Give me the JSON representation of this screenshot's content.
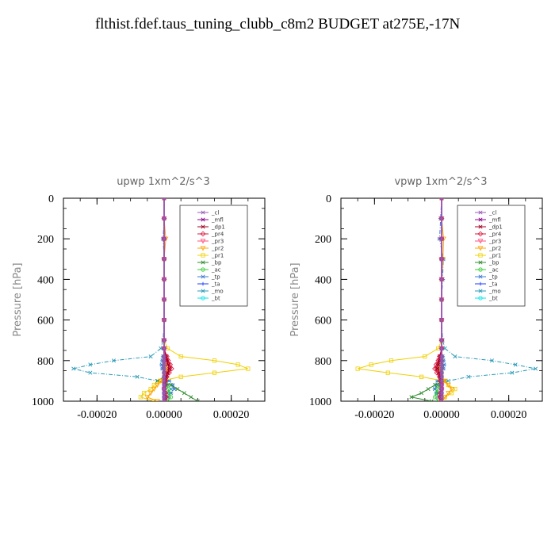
{
  "title": "flthist.fdef.taus_tuning_clubb_c8m2  BUDGET at275E,-17N",
  "legend_entries": [
    {
      "name": "_cl",
      "color": "#9b59b6"
    },
    {
      "name": "_mfl",
      "color": "#8b008b"
    },
    {
      "name": "_dp1",
      "color": "#a0001e"
    },
    {
      "name": "_pr4",
      "color": "#dc143c"
    },
    {
      "name": "_pr3",
      "color": "#ff4f7a"
    },
    {
      "name": "_pr2",
      "color": "#ffa500"
    },
    {
      "name": "_pr1",
      "color": "#f0d000"
    },
    {
      "name": "_bp",
      "color": "#2e8b2e"
    },
    {
      "name": "_ac",
      "color": "#32cd32"
    },
    {
      "name": "_tp",
      "color": "#3a7bd5"
    },
    {
      "name": "_ta",
      "color": "#1e3cff"
    },
    {
      "name": "_mo",
      "color": "#2a9bb8"
    },
    {
      "name": "_bt",
      "color": "#00e5ee"
    }
  ],
  "chart_data": [
    {
      "type": "line",
      "title": "upwp   1xm^2/s^3",
      "ylabel": "Pressure [hPa]",
      "xlabel": "",
      "xlim": [
        -0.0003,
        0.0003
      ],
      "ylim": [
        1000,
        0
      ],
      "xticks": [
        -0.0002,
        0.0,
        0.0002
      ],
      "xtick_labels": [
        "-0.00020",
        "0.00000",
        "0.00020"
      ],
      "yticks": [
        0,
        200,
        400,
        600,
        800,
        1000
      ],
      "ytick_labels": [
        "0",
        "200",
        "400",
        "600",
        "800",
        "1000"
      ],
      "legend_position": "top-right",
      "y": [
        0,
        100,
        200,
        300,
        400,
        500,
        600,
        700,
        740,
        780,
        800,
        820,
        840,
        860,
        880,
        900,
        920,
        940,
        960,
        980,
        1000
      ],
      "series": [
        {
          "name": "_cl",
          "values": [
            0,
            0,
            0,
            0,
            0,
            0,
            0,
            0,
            0,
            0,
            0,
            0,
            0,
            0,
            0,
            0,
            0,
            0,
            0,
            0,
            0
          ]
        },
        {
          "name": "_mfl",
          "values": [
            0,
            0,
            0,
            0,
            0,
            0,
            0,
            0,
            0,
            0,
            0,
            0,
            0,
            0,
            0,
            0,
            0,
            0,
            0,
            0,
            0
          ]
        },
        {
          "name": "_dp1",
          "values": [
            0,
            0,
            0,
            0,
            0,
            0,
            0,
            0,
            0,
            5e-06,
            8e-06,
            1.2e-05,
            1.5e-05,
            1e-05,
            6e-06,
            3e-06,
            1e-06,
            0,
            1e-06,
            2e-06,
            0
          ]
        },
        {
          "name": "_pr4",
          "values": [
            0,
            0,
            0,
            0,
            0,
            0,
            0,
            0,
            0,
            8e-06,
            1.2e-05,
            1.8e-05,
            2.2e-05,
            1.5e-05,
            8e-06,
            4e-06,
            2e-06,
            0,
            4e-06,
            6e-06,
            2e-06
          ]
        },
        {
          "name": "_pr3",
          "values": [
            0,
            0,
            0,
            0,
            0,
            0,
            0,
            0,
            0,
            6e-06,
            9e-06,
            1.4e-05,
            1.8e-05,
            1.2e-05,
            6e-06,
            3e-06,
            1e-06,
            0,
            3e-06,
            5e-06,
            1e-06
          ]
        },
        {
          "name": "_pr2",
          "values": [
            0,
            0,
            5e-06,
            0,
            0,
            0,
            0,
            0,
            0,
            3e-06,
            4e-06,
            6e-06,
            8e-06,
            5e-06,
            3e-06,
            -1e-05,
            -2e-05,
            -3e-05,
            -4e-05,
            -5e-05,
            -2e-05
          ]
        },
        {
          "name": "_pr1",
          "values": [
            0,
            0,
            0,
            0,
            0,
            0,
            0,
            0,
            1e-05,
            5e-05,
            0.00015,
            0.00022,
            0.00025,
            0.00015,
            5e-05,
            -1e-05,
            -3e-05,
            -4e-05,
            -6e-05,
            -7e-05,
            -3e-05
          ]
        },
        {
          "name": "_bp",
          "values": [
            0,
            0,
            0,
            0,
            0,
            0,
            0,
            0,
            0,
            0,
            0,
            0,
            0,
            0,
            0,
            -2e-05,
            2e-05,
            4e-05,
            6e-05,
            8e-05,
            0.0001
          ]
        },
        {
          "name": "_ac",
          "values": [
            0,
            0,
            0,
            0,
            0,
            0,
            0,
            0,
            0,
            0,
            0,
            0,
            0,
            0,
            0,
            5e-06,
            8e-06,
            1.2e-05,
            1.5e-05,
            2e-05,
            1e-05
          ]
        },
        {
          "name": "_tp",
          "values": [
            0,
            0,
            -3e-06,
            0,
            0,
            0,
            0,
            0,
            0,
            -3e-06,
            -5e-06,
            -7e-06,
            -5e-06,
            0,
            5e-06,
            1.5e-05,
            2.5e-05,
            3e-05,
            2e-05,
            1e-05,
            5e-06
          ]
        },
        {
          "name": "_ta",
          "values": [
            0,
            0,
            0,
            0,
            0,
            0,
            0,
            0,
            0,
            0,
            0,
            0,
            0,
            0,
            0,
            3e-06,
            5e-06,
            4e-06,
            2e-06,
            1e-06,
            0
          ]
        },
        {
          "name": "_mo",
          "values": [
            0,
            0,
            0,
            0,
            0,
            0,
            0,
            -3e-06,
            -1e-05,
            -4e-05,
            -0.00015,
            -0.00022,
            -0.00027,
            -0.00022,
            -8e-05,
            -2e-05,
            1e-05,
            2e-05,
            1e-05,
            0,
            0
          ]
        },
        {
          "name": "_bt",
          "values": [
            0,
            0,
            0,
            0,
            0,
            0,
            0,
            0,
            0,
            0,
            0,
            0,
            0,
            0,
            0,
            0,
            0,
            0,
            0,
            0,
            0
          ]
        }
      ]
    },
    {
      "type": "line",
      "title": "vpwp   1xm^2/s^3",
      "ylabel": "Pressure [hPa]",
      "xlabel": "",
      "xlim": [
        -0.0003,
        0.0003
      ],
      "ylim": [
        1000,
        0
      ],
      "xticks": [
        -0.0002,
        0.0,
        0.0002
      ],
      "xtick_labels": [
        "-0.00020",
        "0.00000",
        "0.00020"
      ],
      "yticks": [
        0,
        200,
        400,
        600,
        800,
        1000
      ],
      "ytick_labels": [
        "0",
        "200",
        "400",
        "600",
        "800",
        "1000"
      ],
      "legend_position": "top-right",
      "y": [
        0,
        100,
        200,
        300,
        400,
        500,
        600,
        700,
        740,
        780,
        800,
        820,
        840,
        860,
        880,
        900,
        920,
        940,
        960,
        980,
        1000
      ],
      "series": [
        {
          "name": "_cl",
          "values": [
            0,
            0,
            0,
            0,
            0,
            0,
            0,
            0,
            0,
            0,
            0,
            0,
            0,
            0,
            0,
            0,
            0,
            0,
            0,
            0,
            0
          ]
        },
        {
          "name": "_mfl",
          "values": [
            0,
            0,
            0,
            0,
            0,
            0,
            0,
            0,
            0,
            0,
            0,
            0,
            0,
            0,
            0,
            0,
            0,
            0,
            0,
            0,
            0
          ]
        },
        {
          "name": "_dp1",
          "values": [
            0,
            0,
            0,
            0,
            0,
            0,
            0,
            0,
            0,
            -4e-06,
            -6e-06,
            -1e-05,
            -1.2e-05,
            -8e-06,
            -4e-06,
            -2e-06,
            0,
            0,
            -1e-06,
            -2e-06,
            0
          ]
        },
        {
          "name": "_pr4",
          "values": [
            0,
            0,
            0,
            0,
            0,
            0,
            0,
            0,
            0,
            -6e-06,
            -1e-05,
            -1.6e-05,
            -2e-05,
            -1.4e-05,
            -6e-06,
            -3e-06,
            0,
            0,
            -3e-06,
            -5e-06,
            -2e-06
          ]
        },
        {
          "name": "_pr3",
          "values": [
            0,
            0,
            0,
            0,
            0,
            0,
            0,
            0,
            0,
            -5e-06,
            -8e-06,
            -1.2e-05,
            -1.6e-05,
            -1e-05,
            -5e-06,
            -2e-06,
            0,
            0,
            -2e-06,
            -4e-06,
            -1e-06
          ]
        },
        {
          "name": "_pr2",
          "values": [
            0,
            0,
            6e-06,
            4e-06,
            0,
            0,
            0,
            0,
            0,
            -3e-06,
            -4e-06,
            -6e-06,
            -8e-06,
            -5e-06,
            -3e-06,
            1e-05,
            2e-05,
            3e-05,
            2e-05,
            1e-05,
            0
          ]
        },
        {
          "name": "_pr1",
          "values": [
            0,
            0,
            0,
            0,
            0,
            0,
            0,
            0,
            -1e-05,
            -5e-05,
            -0.00015,
            -0.00021,
            -0.00025,
            -0.00016,
            -6e-05,
            5e-06,
            2e-05,
            4e-05,
            3e-05,
            1e-05,
            0
          ]
        },
        {
          "name": "_bp",
          "values": [
            0,
            0,
            0,
            0,
            0,
            0,
            0,
            0,
            0,
            0,
            0,
            0,
            0,
            0,
            0,
            1e-05,
            -2e-05,
            -4e-05,
            -6e-05,
            -9e-05,
            -3e-05
          ]
        },
        {
          "name": "_ac",
          "values": [
            0,
            0,
            0,
            0,
            0,
            0,
            0,
            0,
            0,
            0,
            0,
            0,
            0,
            0,
            0,
            -4e-06,
            -8e-06,
            -1.2e-05,
            -1.5e-05,
            -2e-05,
            -1e-05
          ]
        },
        {
          "name": "_tp",
          "values": [
            0,
            -3e-06,
            -6e-06,
            5e-06,
            3e-06,
            0,
            0,
            0,
            0,
            3e-06,
            5e-06,
            7e-06,
            5e-06,
            0,
            -5e-06,
            -1.2e-05,
            -1.5e-05,
            -2e-05,
            -1.5e-05,
            -8e-06,
            -3e-06
          ]
        },
        {
          "name": "_ta",
          "values": [
            0,
            0,
            0,
            0,
            0,
            0,
            0,
            0,
            0,
            0,
            0,
            0,
            0,
            0,
            0,
            -3e-06,
            -5e-06,
            -4e-06,
            -2e-06,
            -1e-06,
            0
          ]
        },
        {
          "name": "_mo",
          "values": [
            0,
            0,
            0,
            0,
            0,
            0,
            0,
            3e-06,
            1e-05,
            4e-05,
            0.00015,
            0.00022,
            0.00028,
            0.00021,
            8e-05,
            2e-05,
            -1e-05,
            -2e-05,
            -1e-05,
            0,
            0
          ]
        },
        {
          "name": "_bt",
          "values": [
            0,
            0,
            0,
            0,
            0,
            0,
            0,
            0,
            0,
            0,
            0,
            0,
            0,
            0,
            0,
            0,
            0,
            0,
            0,
            0,
            0
          ]
        }
      ]
    }
  ]
}
